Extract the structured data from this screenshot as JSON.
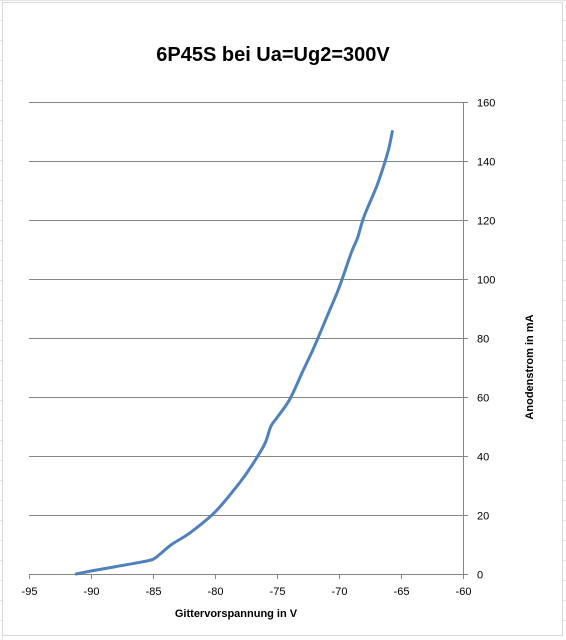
{
  "chart_data": {
    "type": "line",
    "title": "6P45S bei Ua=Ug2=300V",
    "xlabel": "Gittervorspannung  in V",
    "ylabel": "Anodenstrom in mA",
    "xlim": [
      -95,
      -60
    ],
    "ylim": [
      0,
      160
    ],
    "x_ticks": [
      "-95",
      "-90",
      "-85",
      "-80",
      "-75",
      "-70",
      "-65",
      "-60"
    ],
    "y_ticks": [
      "0",
      "20",
      "40",
      "60",
      "80",
      "100",
      "120",
      "140",
      "160"
    ],
    "y_axis_side": "right",
    "grid": "horizontal",
    "legend": "none",
    "series": [
      {
        "color": "#4f81bd",
        "x": [
          -91.2,
          -90,
          -88,
          -86,
          -85,
          -84.5,
          -83.5,
          -82,
          -80,
          -78,
          -77,
          -76,
          -75.5,
          -75,
          -74,
          -73,
          -72,
          -71,
          -70,
          -69,
          -68.5,
          -68,
          -67,
          -66.5,
          -66,
          -65.7
        ],
        "y": [
          0,
          1,
          2.5,
          4,
          5,
          6.5,
          10,
          14,
          21,
          31,
          37,
          44,
          50,
          53,
          59,
          68,
          77,
          87,
          97,
          109,
          114,
          121,
          131,
          137,
          144,
          150
        ]
      }
    ]
  }
}
